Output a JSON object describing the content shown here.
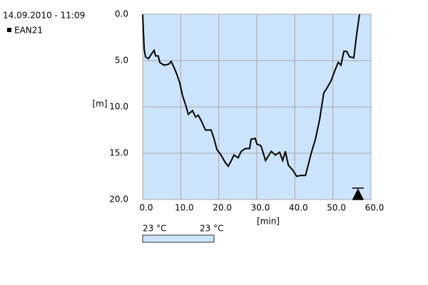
{
  "chart_data": {
    "type": "line",
    "title": "14.09.2010 - 11:09",
    "x_label": "[min]",
    "y_label": "[m]",
    "x": [
      0,
      0.4,
      0.75,
      1.5,
      2.3,
      3,
      3.4,
      4.1,
      4.5,
      5.6,
      6.8,
      7.5,
      8.3,
      9,
      9.8,
      10.5,
      11.3,
      12,
      13.1,
      13.9,
      14.6,
      15.4,
      16.5,
      18,
      18.8,
      19.5,
      20.6,
      21.7,
      22.5,
      23.3,
      24,
      25.1,
      25.9,
      27,
      28.1,
      28.5,
      29.6,
      30,
      31.1,
      32.3,
      33.8,
      34.9,
      36,
      36.8,
      37.5,
      38.3,
      39.4,
      40.5,
      41.6,
      42.8,
      43.5,
      44.3,
      45.4,
      46.5,
      47.6,
      48.4,
      49.5,
      50.6,
      51.4,
      52.1,
      52.9,
      53.6,
      54.4,
      55.5,
      56.3,
      57
    ],
    "series": [
      {
        "name": "EAN21",
        "color": "#000000",
        "values": [
          0,
          3.8,
          4.6,
          4.8,
          4.3,
          3.9,
          4.5,
          4.5,
          5.2,
          5.5,
          5.4,
          5.1,
          5.8,
          6.5,
          7.5,
          8.8,
          9.8,
          10.8,
          10.4,
          11.1,
          10.9,
          11.5,
          12.5,
          12.5,
          13.5,
          14.6,
          15.2,
          16,
          16.4,
          15.8,
          15.2,
          15.5,
          14.8,
          14.5,
          14.5,
          13.5,
          13.4,
          14,
          14.2,
          15.8,
          14.8,
          15.2,
          14.9,
          15.8,
          14.8,
          16.3,
          16.8,
          17.5,
          17.4,
          17.4,
          16.3,
          15,
          13.5,
          11.4,
          8.5,
          8,
          7.2,
          6,
          5.2,
          5.5,
          4,
          4,
          4.6,
          4.7,
          2,
          0
        ]
      }
    ],
    "xlim": [
      0,
      60
    ],
    "xticks": [
      {
        "value": 0,
        "label": "0.0"
      },
      {
        "value": 10,
        "label": "10.0"
      },
      {
        "value": 20,
        "label": "20.0"
      },
      {
        "value": 30,
        "label": "30.0"
      },
      {
        "value": 40,
        "label": "40.0"
      },
      {
        "value": 50,
        "label": "50.0"
      },
      {
        "value": 60,
        "label": "60.0"
      }
    ],
    "ylim": [
      0,
      20
    ],
    "y_inverted": true,
    "yticks": [
      {
        "value": 0,
        "label": "0.0"
      },
      {
        "value": 5,
        "label": "5.0"
      },
      {
        "value": 10,
        "label": "10.0"
      },
      {
        "value": 15,
        "label": "15.0"
      },
      {
        "value": 20,
        "label": "20.0"
      }
    ],
    "grid": true,
    "plot_background": "#cce4fb",
    "marker": {
      "x": 56.6
    },
    "temperature_labels": [
      "23 °C",
      "23 °C"
    ]
  }
}
